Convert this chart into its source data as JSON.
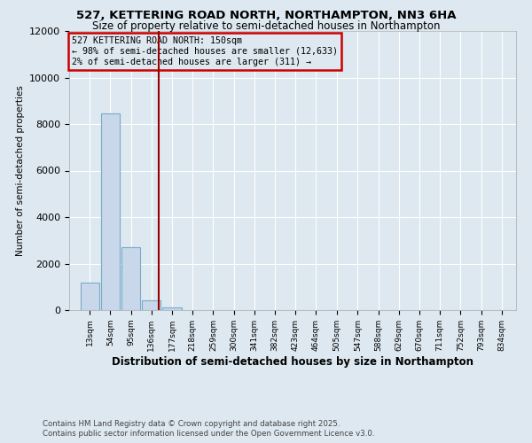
{
  "title": "527, KETTERING ROAD NORTH, NORTHAMPTON, NN3 6HA",
  "subtitle": "Size of property relative to semi-detached houses in Northampton",
  "xlabel": "Distribution of semi-detached houses by size in Northampton",
  "ylabel": "Number of semi-detached properties",
  "footer_line1": "Contains HM Land Registry data © Crown copyright and database right 2025.",
  "footer_line2": "Contains public sector information licensed under the Open Government Licence v3.0.",
  "annotation_title": "527 KETTERING ROAD NORTH: 150sqm",
  "annotation_line1": "← 98% of semi-detached houses are smaller (12,633)",
  "annotation_line2": "2% of semi-detached houses are larger (311) →",
  "property_size": 150,
  "bar_color": "#c8d8ea",
  "bar_edgecolor": "#7aaac8",
  "vline_color": "#990000",
  "annotation_edgecolor": "#cc0000",
  "background_color": "#dde8f0",
  "categories": [
    "13sqm",
    "54sqm",
    "95sqm",
    "136sqm",
    "177sqm",
    "218sqm",
    "259sqm",
    "300sqm",
    "341sqm",
    "382sqm",
    "423sqm",
    "464sqm",
    "505sqm",
    "547sqm",
    "588sqm",
    "629sqm",
    "670sqm",
    "711sqm",
    "752sqm",
    "793sqm",
    "834sqm"
  ],
  "values": [
    1200,
    8450,
    2700,
    430,
    100,
    18,
    0,
    0,
    0,
    0,
    0,
    0,
    0,
    0,
    0,
    0,
    0,
    0,
    0,
    0,
    0
  ],
  "bin_edges": [
    13,
    54,
    95,
    136,
    177,
    218,
    259,
    300,
    341,
    382,
    423,
    464,
    505,
    547,
    588,
    629,
    670,
    711,
    752,
    793,
    834
  ],
  "ylim": [
    0,
    12000
  ],
  "yticks": [
    0,
    2000,
    4000,
    6000,
    8000,
    10000,
    12000
  ]
}
